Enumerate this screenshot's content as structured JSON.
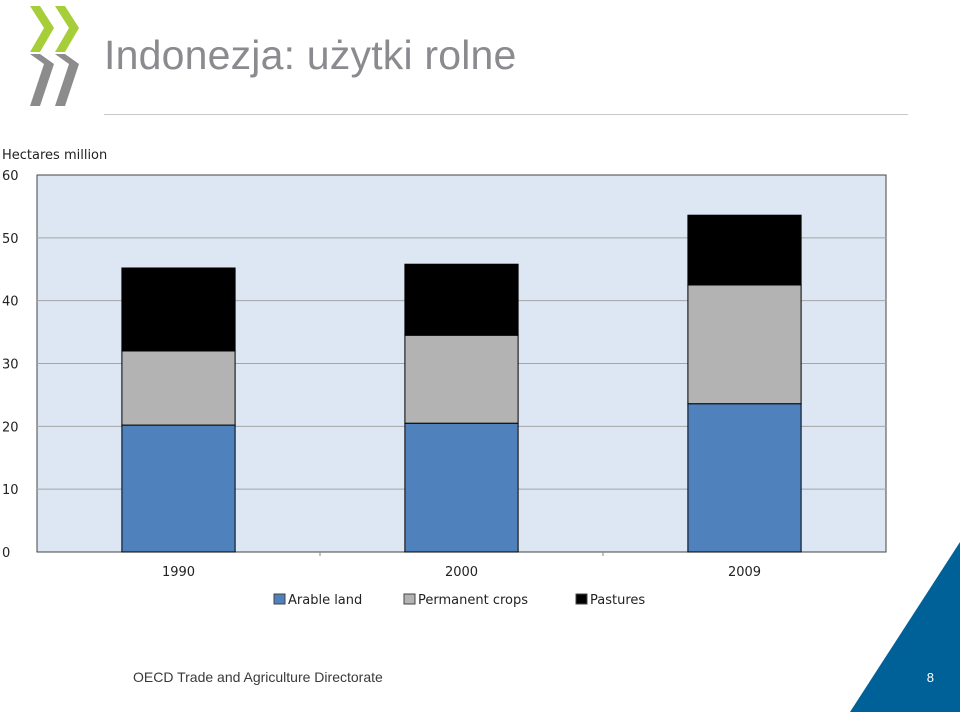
{
  "slide": {
    "title": "Indonezja: użytki rolne",
    "footer": "OECD Trade and Agriculture Directorate",
    "page_number": "8",
    "colors": {
      "title": "#8a8a8f",
      "corner": "#006199",
      "logo_green": "#a6ce39",
      "logo_grey": "#8c8c8c"
    }
  },
  "chart_data": {
    "type": "bar",
    "stacked": true,
    "title": "",
    "ylabel": "Hectares million",
    "xlabel": "",
    "categories": [
      "1990",
      "2000",
      "2009"
    ],
    "ylim": [
      0,
      60
    ],
    "yticks": [
      "0",
      "10",
      "20",
      "30",
      "40",
      "50",
      "60"
    ],
    "grid": true,
    "legend_position": "bottom",
    "series": [
      {
        "name": "Arable land",
        "values": [
          20.2,
          20.5,
          23.6
        ],
        "color": "#4f81bd"
      },
      {
        "name": "Permanent crops",
        "values": [
          11.8,
          14.0,
          18.9
        ],
        "color": "#b3b3b3"
      },
      {
        "name": "Pastures",
        "values": [
          13.2,
          11.3,
          11.1
        ],
        "color": "#000000"
      }
    ],
    "plot_background": "#dde6f3"
  }
}
